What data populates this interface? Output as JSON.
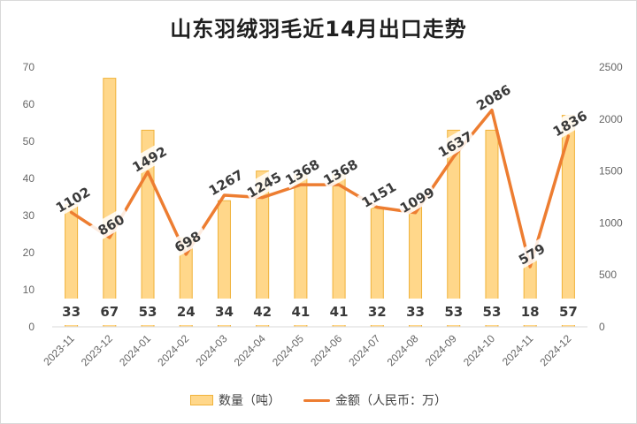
{
  "chart_data": {
    "type": "bar",
    "title": "山东羽绒羽毛近14月出口走势",
    "categories": [
      "2023-11",
      "2023-12",
      "2024-01",
      "2024-02",
      "2024-03",
      "2024-04",
      "2024-05",
      "2024-06",
      "2024-07",
      "2024-08",
      "2024-09",
      "2024-10",
      "2024-11",
      "2024-12"
    ],
    "series": [
      {
        "name": "数量（吨）",
        "type": "bar",
        "axis": "left",
        "values": [
          33,
          67,
          53,
          24,
          34,
          42,
          41,
          41,
          32,
          33,
          53,
          53,
          18,
          57
        ]
      },
      {
        "name": "金额（人民币：万）",
        "type": "line",
        "axis": "right",
        "values": [
          1102,
          860,
          1492,
          698,
          1267,
          1245,
          1368,
          1368,
          1151,
          1099,
          1637,
          2086,
          579,
          1836
        ]
      }
    ],
    "y_left": {
      "min": 0,
      "max": 70,
      "ticks": [
        0,
        10,
        20,
        30,
        40,
        50,
        60,
        70
      ]
    },
    "y_right": {
      "min": 0,
      "max": 2500,
      "ticks": [
        0,
        500,
        1000,
        1500,
        2000,
        2500
      ]
    },
    "grid": false,
    "legend_position": "bottom",
    "colors": {
      "bar_fill": "#ffd78a",
      "bar_stroke": "#f0b23a",
      "line": "#ed7d31"
    }
  }
}
